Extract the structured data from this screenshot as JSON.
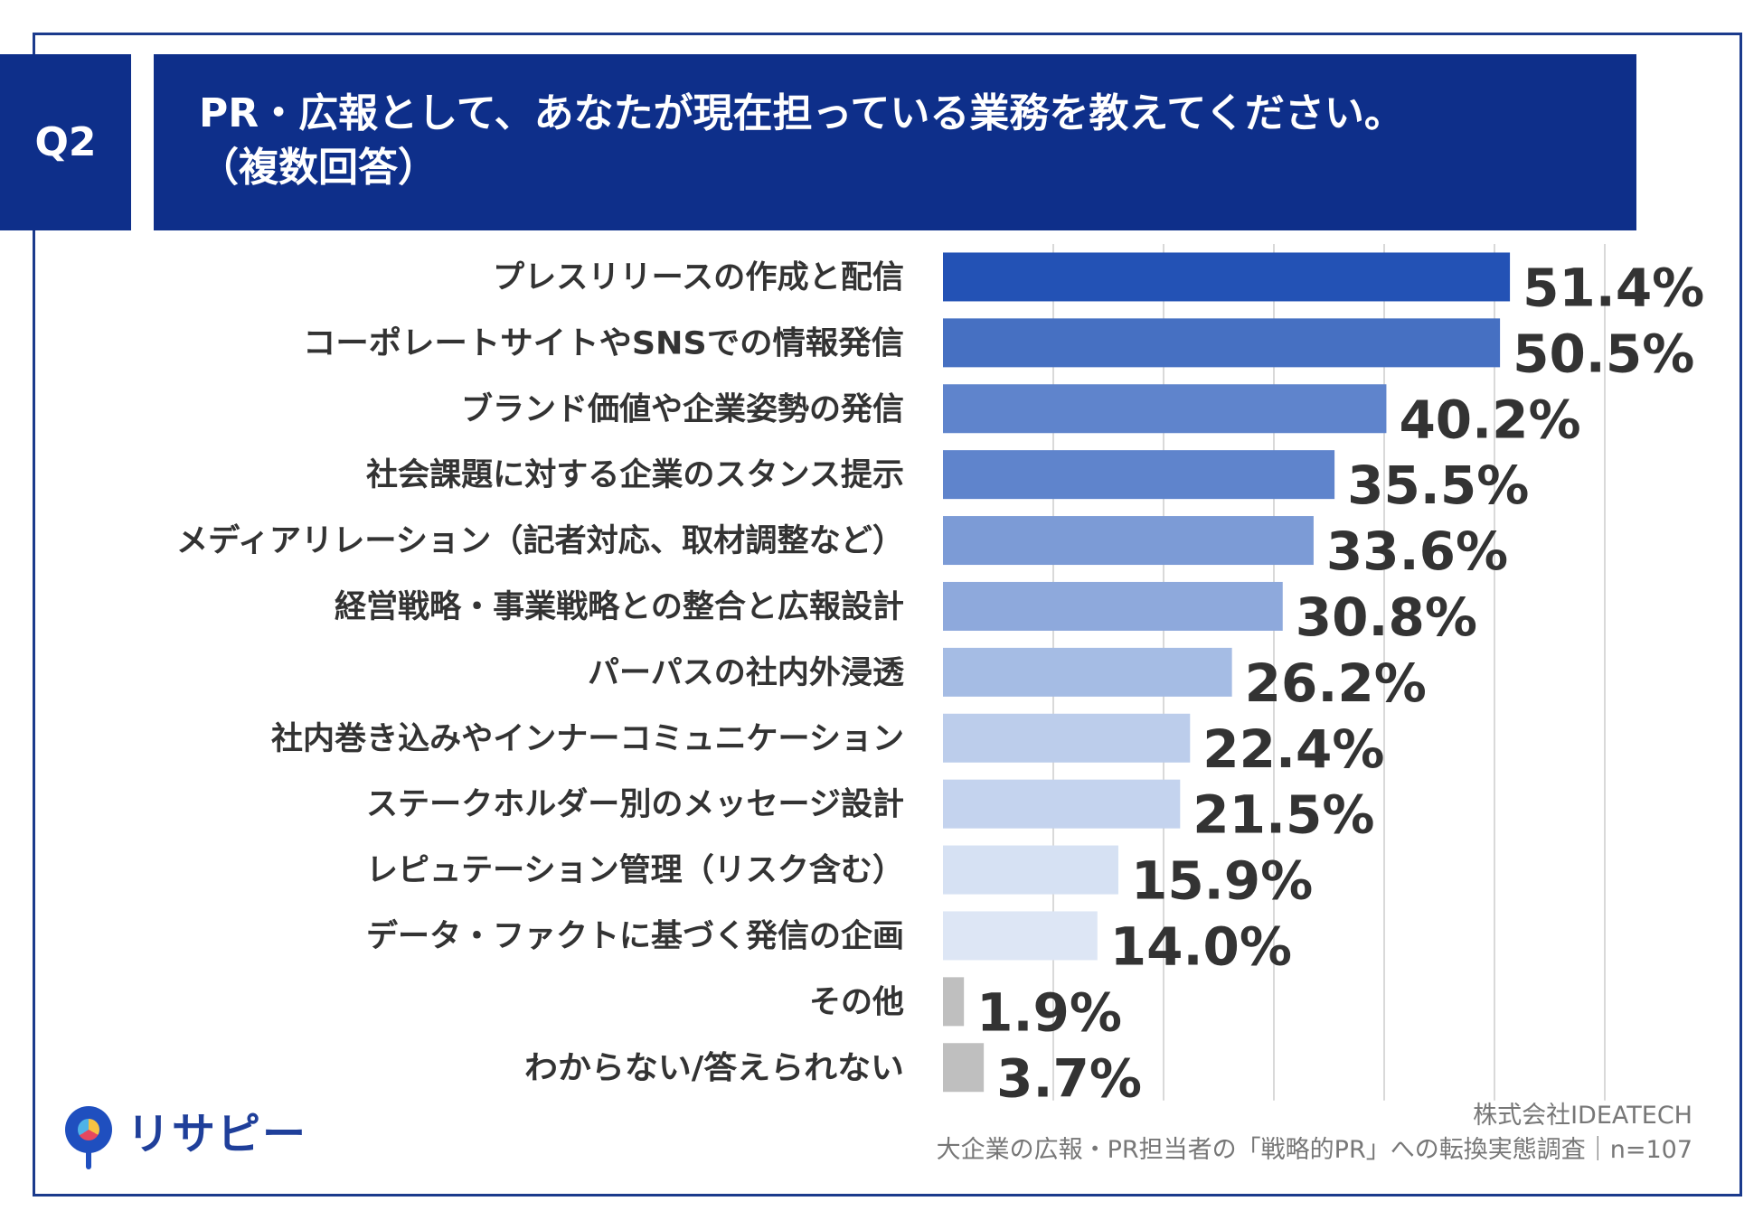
{
  "question": {
    "number": "Q2",
    "title_line1": "PR・広報として、あなたが現在担っている業務を教えてください。",
    "title_line2": "（複数回答）"
  },
  "chart_data": {
    "type": "bar",
    "orientation": "horizontal",
    "unit": "%",
    "xlim": [
      0,
      60
    ],
    "grid": true,
    "categories": [
      "プレスリリースの作成と配信",
      "コーポレートサイトやSNSでの情報発信",
      "ブランド価値や企業姿勢の発信",
      "社会課題に対する企業のスタンス提示",
      "メディアリレーション（記者対応、取材調整など）",
      "経営戦略・事業戦略との整合と広報設計",
      "パーパスの社内外浸透",
      "社内巻き込みやインナーコミュニケーション",
      "ステークホルダー別のメッセージ設計",
      "レピュテーション管理（リスク含む）",
      "データ・ファクトに基づく発信の企画",
      "その他",
      "わからない/答えられない"
    ],
    "values": [
      51.4,
      50.5,
      40.2,
      35.5,
      33.6,
      30.8,
      26.2,
      22.4,
      21.5,
      15.9,
      14.0,
      1.9,
      3.7
    ],
    "value_labels": [
      "51.4%",
      "50.5%",
      "40.2%",
      "35.5%",
      "33.6%",
      "30.8%",
      "26.2%",
      "22.4%",
      "21.5%",
      "15.9%",
      "14.0%",
      "1.9%",
      "3.7%"
    ],
    "colors": [
      "#2352b5",
      "#4670c2",
      "#5f84cc",
      "#5f84cc",
      "#7c9bd6",
      "#8ea9dc",
      "#a5bce4",
      "#bccdeb",
      "#c4d3ee",
      "#d6e1f3",
      "#dde6f5",
      "#bfbfbf",
      "#bfbfbf"
    ]
  },
  "logo": {
    "text": "リサピー"
  },
  "credit": {
    "company": "株式会社IDEATECH",
    "survey": "大企業の広報・PR担当者の「戦略的PR」への転換実態調査｜n=107"
  }
}
